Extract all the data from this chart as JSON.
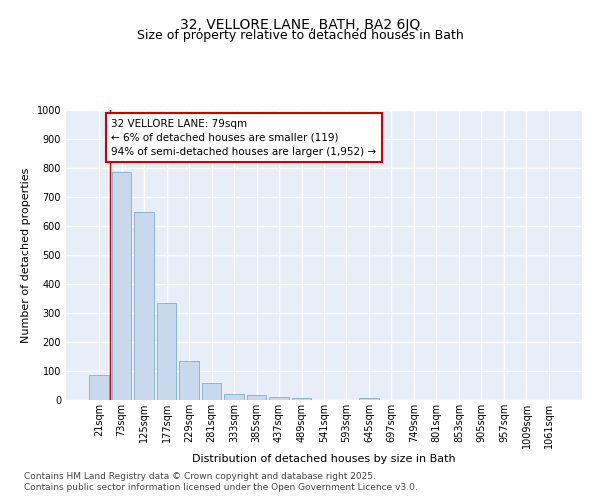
{
  "title_line1": "32, VELLORE LANE, BATH, BA2 6JQ",
  "title_line2": "Size of property relative to detached houses in Bath",
  "xlabel": "Distribution of detached houses by size in Bath",
  "ylabel": "Number of detached properties",
  "bar_labels": [
    "21sqm",
    "73sqm",
    "125sqm",
    "177sqm",
    "229sqm",
    "281sqm",
    "333sqm",
    "385sqm",
    "437sqm",
    "489sqm",
    "541sqm",
    "593sqm",
    "645sqm",
    "697sqm",
    "749sqm",
    "801sqm",
    "853sqm",
    "905sqm",
    "957sqm",
    "1009sqm",
    "1061sqm"
  ],
  "bar_values": [
    85,
    785,
    648,
    335,
    135,
    60,
    22,
    17,
    10,
    7,
    0,
    0,
    8,
    0,
    0,
    0,
    0,
    0,
    0,
    0,
    0
  ],
  "bar_color": "#c8d9ee",
  "bar_edge_color": "#7aafd4",
  "ylim": [
    0,
    1000
  ],
  "yticks": [
    0,
    100,
    200,
    300,
    400,
    500,
    600,
    700,
    800,
    900,
    1000
  ],
  "vline_color": "#cc0000",
  "annotation_text_line1": "32 VELLORE LANE: 79sqm",
  "annotation_text_line2": "← 6% of detached houses are smaller (119)",
  "annotation_text_line3": "94% of semi-detached houses are larger (1,952) →",
  "annotation_box_color": "#cc0000",
  "footer_line1": "Contains HM Land Registry data © Crown copyright and database right 2025.",
  "footer_line2": "Contains public sector information licensed under the Open Government Licence v3.0.",
  "background_color": "#e8eef8",
  "grid_color": "#ffffff",
  "title_fontsize": 10,
  "subtitle_fontsize": 9,
  "axis_label_fontsize": 8,
  "tick_fontsize": 7,
  "annotation_fontsize": 7.5,
  "footer_fontsize": 6.5
}
